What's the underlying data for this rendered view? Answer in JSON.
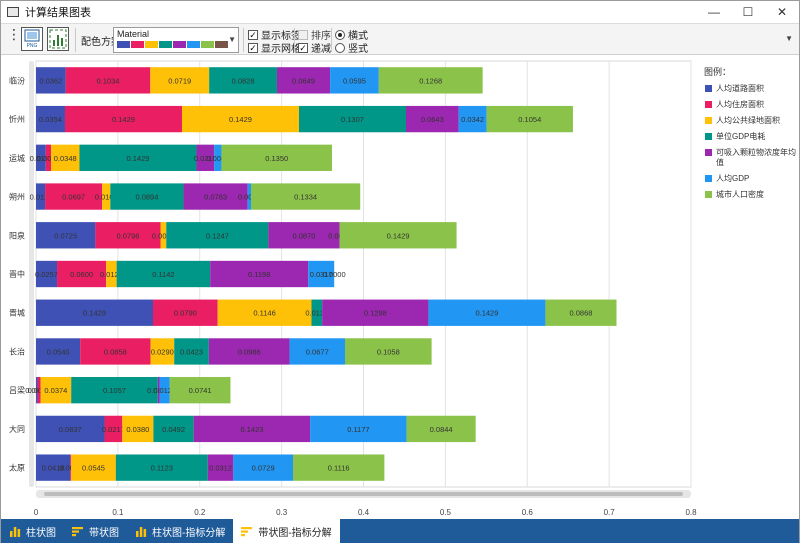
{
  "window": {
    "title": "计算结果图表",
    "minimize": "—",
    "maximize": "☐",
    "close": "✕"
  },
  "toolbar": {
    "scheme_label": "配色方案",
    "scheme_name": "Material",
    "scheme_colors": [
      "#3f51b5",
      "#e91e63",
      "#ffc107",
      "#009688",
      "#9c27b0",
      "#2196f3",
      "#8bc34a",
      "#795548"
    ],
    "show_labels": {
      "label": "显示标签",
      "checked": true
    },
    "show_grid": {
      "label": "显示网格",
      "checked": true
    },
    "sort": {
      "label": "排序",
      "checked": false
    },
    "decrease": {
      "label": "递减",
      "checked": true
    },
    "horizontal": {
      "label": "横式",
      "checked": true
    },
    "vertical": {
      "label": "竖式",
      "checked": false
    }
  },
  "legend": {
    "title": "图例："
  },
  "chart_data": {
    "type": "bar",
    "stacked": true,
    "orientation": "horizontal",
    "categories": [
      "临汾",
      "忻州",
      "运城",
      "朔州",
      "阳泉",
      "晋中",
      "晋城",
      "长治",
      "吕梁",
      "大同",
      "太原"
    ],
    "series": [
      {
        "name": "人均道路面积",
        "color": "#3f51b5",
        "values": [
          0.0362,
          0.0354,
          0.0119,
          0.0111,
          0.0725,
          0.0257,
          0.1429,
          0.054,
          0.0019,
          0.0837,
          0.0418
        ]
      },
      {
        "name": "人均住房面积",
        "color": "#e91e63",
        "values": [
          0.1034,
          0.1429,
          0.0064,
          0.0697,
          0.0796,
          0.06,
          0.079,
          0.0858,
          0.0037,
          0.0217,
          0.0012
        ]
      },
      {
        "name": "人均公共绿地面积",
        "color": "#ffc107",
        "values": [
          0.0719,
          0.1429,
          0.0348,
          0.01,
          0.007,
          0.0128,
          0.1146,
          0.029,
          0.0374,
          0.038,
          0.0545
        ]
      },
      {
        "name": "单位GDP电耗",
        "color": "#009688",
        "values": [
          0.0828,
          0.1307,
          0.1429,
          0.0894,
          0.1247,
          0.1142,
          0.013,
          0.0423,
          0.1057,
          0.0492,
          0.1123
        ]
      },
      {
        "name": "可吸入颗粒物浓度年均值",
        "color": "#9c27b0",
        "values": [
          0.0649,
          0.0643,
          0.0216,
          0.0783,
          0.087,
          0.1198,
          0.1298,
          0.0986,
          0.0022,
          0.1423,
          0.0312
        ]
      },
      {
        "name": "人均GDP",
        "color": "#2196f3",
        "values": [
          0.0595,
          0.0342,
          0.0089,
          0.0041,
          0.0,
          0.0317,
          0.1429,
          0.0677,
          0.0125,
          0.1177,
          0.0729
        ]
      },
      {
        "name": "城市人口密度",
        "color": "#8bc34a",
        "values": [
          0.1268,
          0.1054,
          0.135,
          0.1334,
          0.1429,
          0.0,
          0.0868,
          0.1058,
          0.0741,
          0.0844,
          0.1116
        ]
      }
    ],
    "labels": [
      [
        "0.0362",
        "0.1034",
        "0.0719",
        "0.0828",
        "0.0649",
        "0.0595",
        "0.1268"
      ],
      [
        "0.0354",
        "0.1429",
        "0.1429",
        "0.1307",
        "0.0643",
        "0.0342",
        "0.1054"
      ],
      [
        "0.0119",
        "0.0064",
        "0.0348",
        "0.1429",
        "0.0216",
        "0.0089",
        "0.1350"
      ],
      [
        "0.0111",
        "0.0697",
        "0.0100",
        "0.0894",
        "0.0783",
        "0.0041",
        "0.1334"
      ],
      [
        "0.0725",
        "0.0796",
        "0.0070",
        "0.1247",
        "0.0870",
        "0.0000",
        "0.1429"
      ],
      [
        "0.0257",
        "0.0600",
        "0.0128",
        "0.1142",
        "0.1198",
        "0.0317",
        "0.0000"
      ],
      [
        "0.1429",
        "0.0790",
        "0.1146",
        "0.0130",
        "0.1298",
        "0.1429",
        "0.0868"
      ],
      [
        "0.0540",
        "0.0858",
        "0.0290",
        "0.0423",
        "0.0986",
        "0.0677",
        "0.1058"
      ],
      [
        "0.0019",
        "0.0037",
        "0.0374",
        "0.1057",
        "0.0022",
        "0.0125",
        "0.0741"
      ],
      [
        "0.0837",
        "0.0217",
        "0.0380",
        "0.0492",
        "0.1423",
        "0.1177",
        "0.0844"
      ],
      [
        "0.0418",
        "0.0012",
        "0.0545",
        "0.1123",
        "0.0312",
        "0.0729",
        "0.1116"
      ]
    ],
    "xlim": [
      0,
      0.8
    ],
    "xticks": [
      "0",
      "0.1",
      "0.2",
      "0.3",
      "0.4",
      "0.5",
      "0.6",
      "0.7",
      "0.8"
    ],
    "grid": true,
    "legend_position": "right"
  },
  "tabs": [
    {
      "label": "柱状图",
      "active": false,
      "icon": "bar-chart-icon"
    },
    {
      "label": "带状图",
      "active": false,
      "icon": "band-chart-icon"
    },
    {
      "label": "柱状图-指标分解",
      "active": false,
      "icon": "bar-chart-icon"
    },
    {
      "label": "带状图-指标分解",
      "active": true,
      "icon": "band-chart-icon"
    }
  ]
}
